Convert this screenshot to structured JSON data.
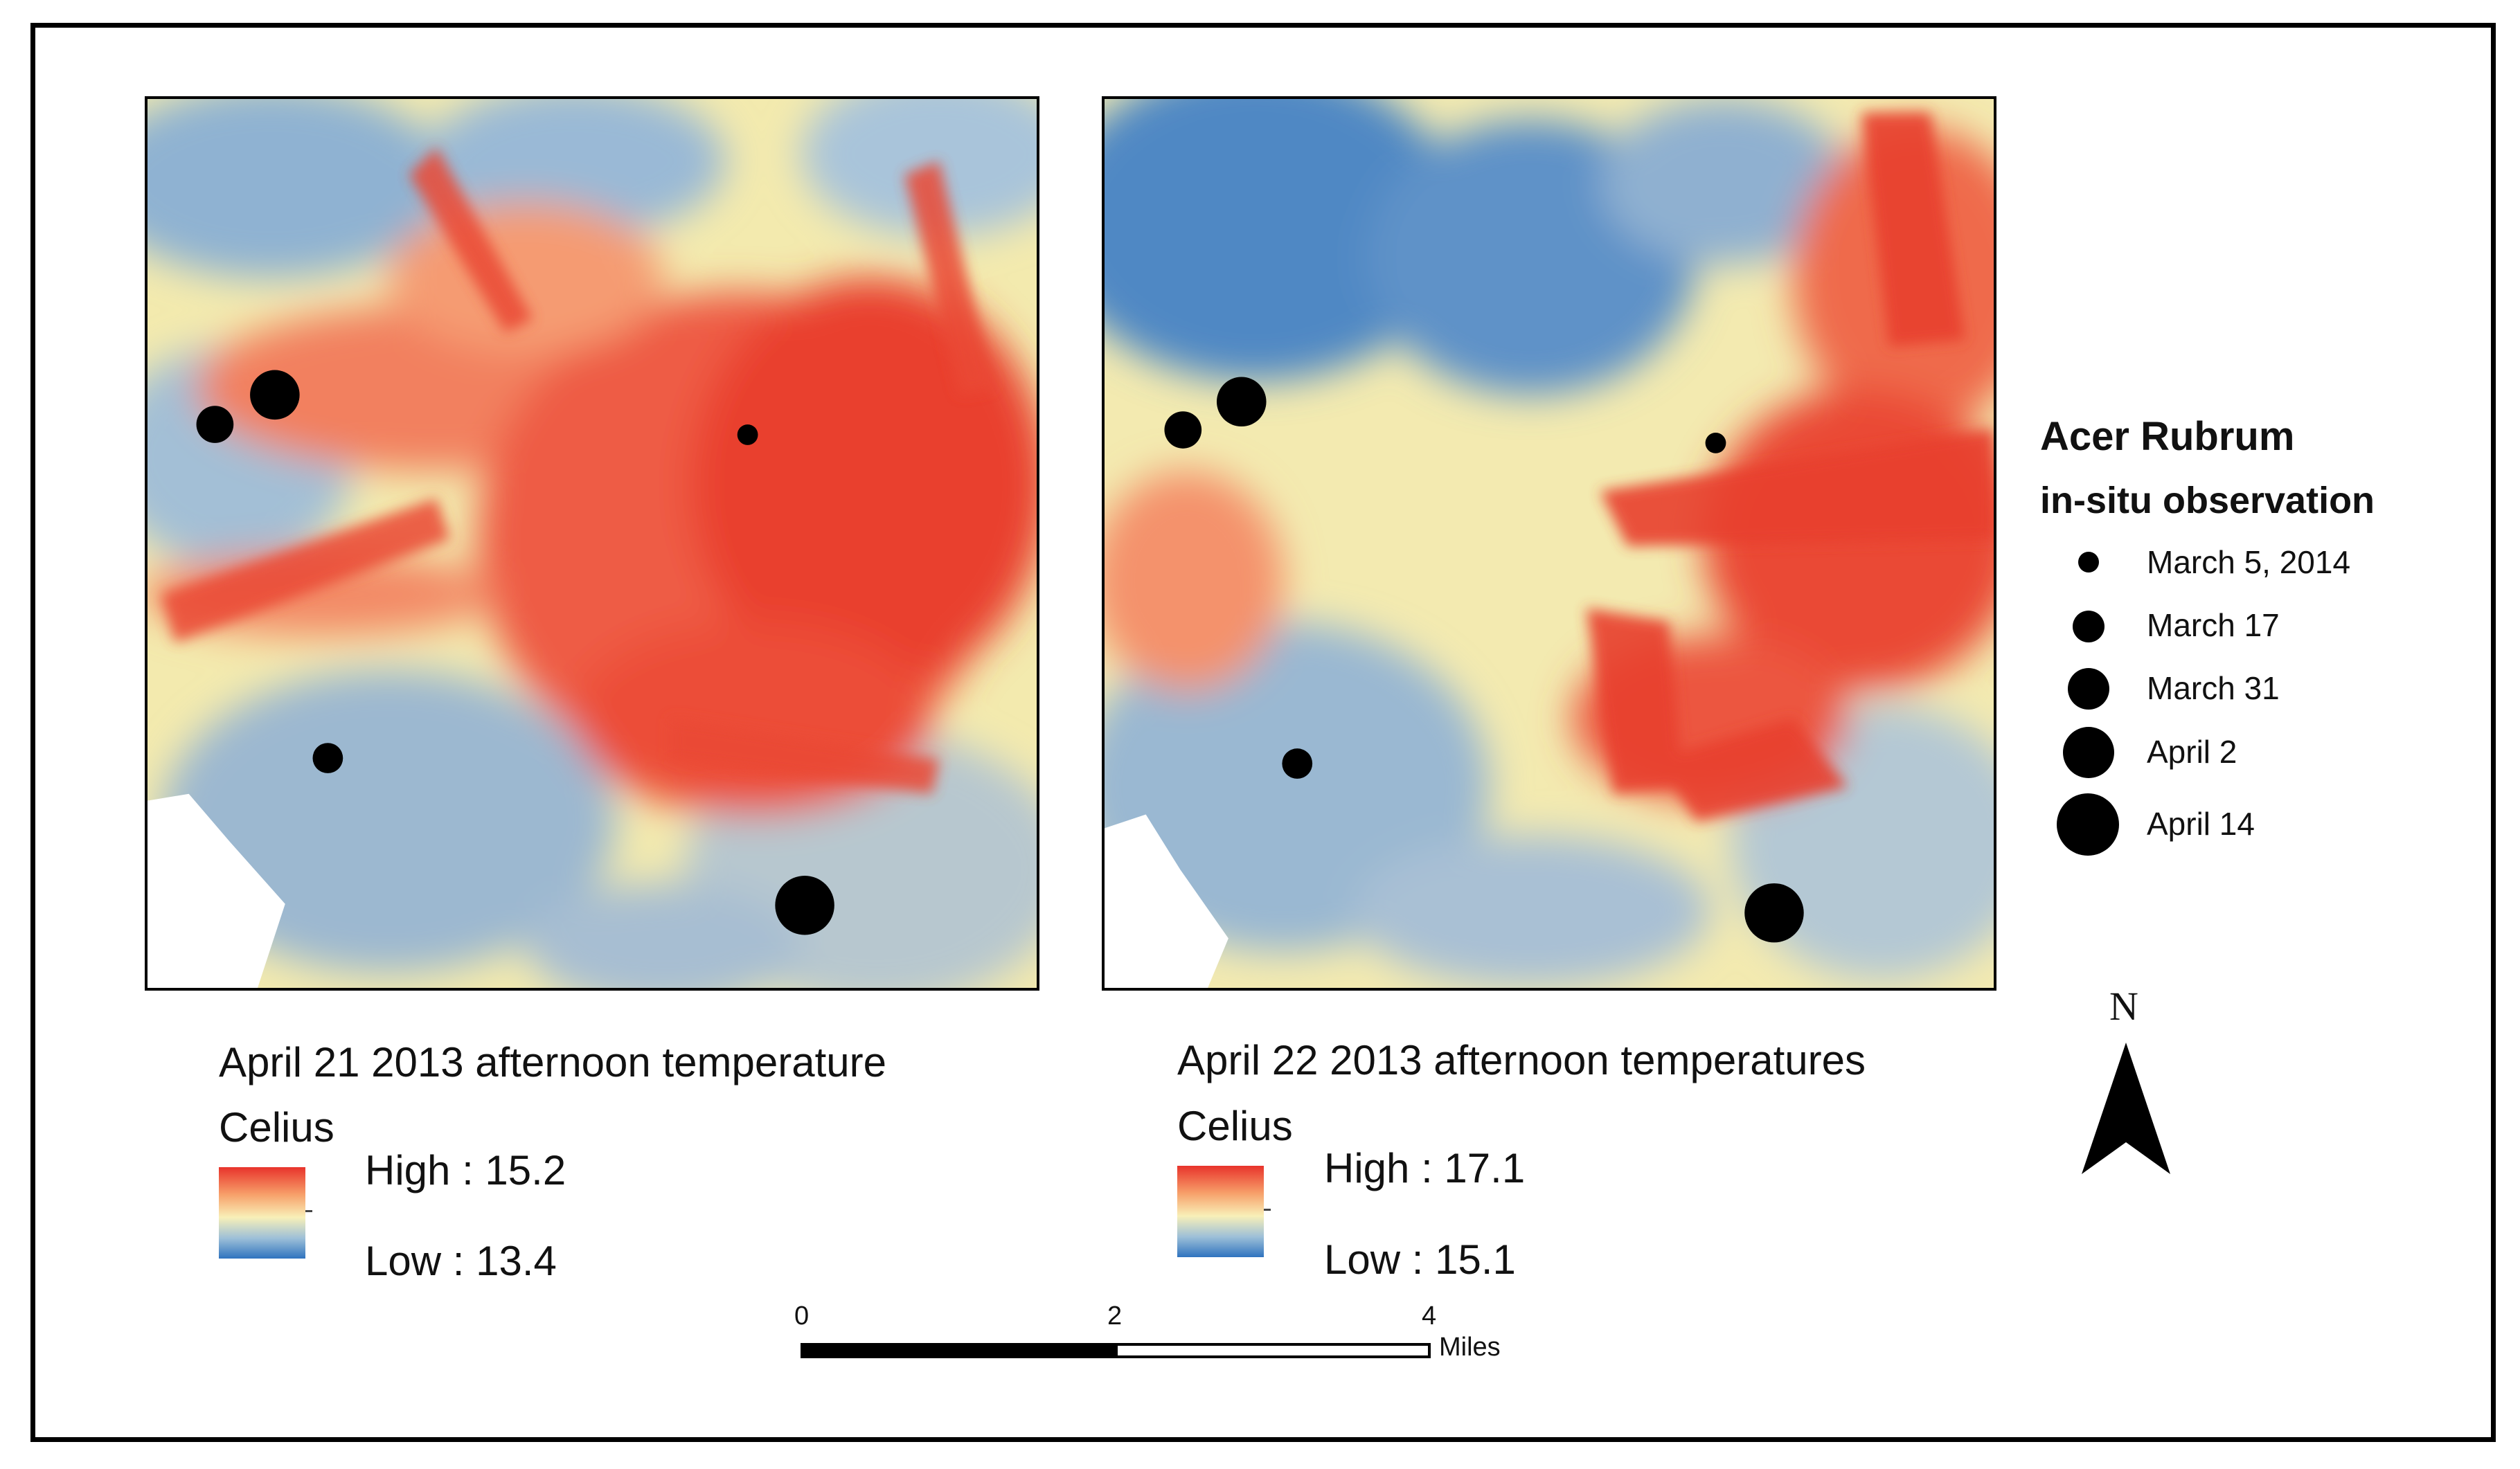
{
  "maps": [
    {
      "caption": "April 21 2013 afternoon temperature",
      "unit": "Celius",
      "high_label": "High : 15.2",
      "low_label": "Low : 13.4",
      "high": 15.2,
      "low": 13.4
    },
    {
      "caption": "April 22 2013 afternoon temperatures",
      "unit": "Celius",
      "high_label": "High : 17.1",
      "low_label": "Low : 15.1",
      "high": 17.1,
      "low": 15.1
    }
  ],
  "legend": {
    "title": "Acer Rubrum",
    "subtitle": "in-situ observation",
    "items": [
      {
        "label": "March 5, 2014"
      },
      {
        "label": "March 17"
      },
      {
        "label": "March 31"
      },
      {
        "label": "April 2"
      },
      {
        "label": "April 14"
      }
    ]
  },
  "scalebar": {
    "ticks": [
      "0",
      "2",
      "4"
    ],
    "unit": "Miles"
  },
  "north_arrow": {
    "label": "N",
    "icon": "north-arrow-icon"
  },
  "colors": {
    "high": "#e8332b",
    "mid": "#f8f0b8",
    "low": "#2f73bf",
    "marker": "#000000"
  }
}
